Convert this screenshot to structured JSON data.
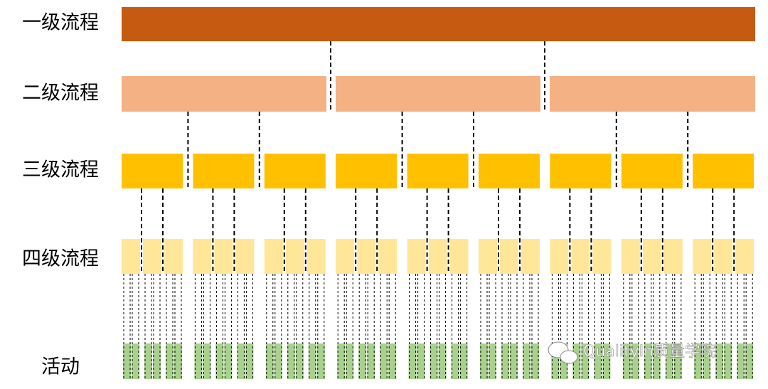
{
  "levels": [
    {
      "label": "一级流程"
    },
    {
      "label": "二级流程"
    },
    {
      "label": "三级流程"
    },
    {
      "label": "四级流程"
    },
    {
      "label": "活动"
    }
  ],
  "watermark": "QualityIn质量学院"
}
